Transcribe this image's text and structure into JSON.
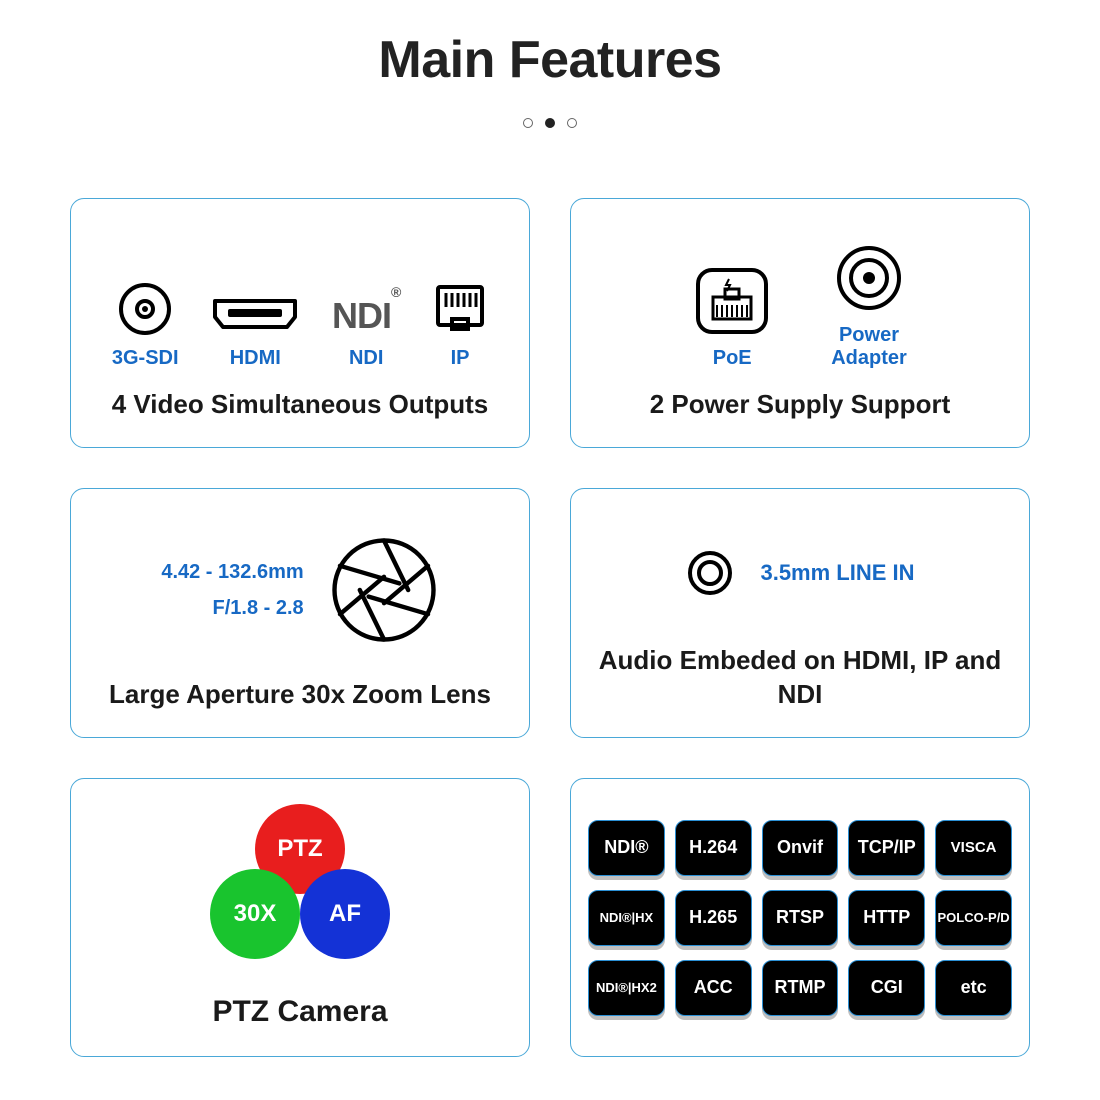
{
  "title": "Main Features",
  "colors": {
    "border": "#4aa8d8",
    "accent": "#1769c4",
    "text": "#1a1a1a",
    "proto_bg": "#000000",
    "proto_border": "#2a8fd4"
  },
  "pager": {
    "count": 3,
    "active": 1
  },
  "cards": {
    "video": {
      "caption": "4 Video Simultaneous Outputs",
      "items": [
        {
          "label": "3G-SDI",
          "icon": "sdi"
        },
        {
          "label": "HDMI",
          "icon": "hdmi"
        },
        {
          "label": "NDI",
          "icon": "ndi-logo",
          "logo": "NDI",
          "sup": "®"
        },
        {
          "label": "IP",
          "icon": "rj45"
        }
      ]
    },
    "power": {
      "caption": "2 Power Supply Support",
      "items": [
        {
          "label": "PoE",
          "icon": "poe"
        },
        {
          "label": "Power\nAdapter",
          "icon": "dcjack"
        }
      ]
    },
    "lens": {
      "caption": "Large Aperture 30x Zoom Lens",
      "spec1": "4.42 - 132.6mm",
      "spec2": "F/1.8 - 2.8",
      "icon": "aperture"
    },
    "audio": {
      "caption": "Audio Embeded on HDMI, IP and NDI",
      "label": "3.5mm LINE IN",
      "icon": "ring"
    },
    "ptz": {
      "caption": "PTZ Camera",
      "circles": [
        {
          "label": "PTZ",
          "color": "#e81e1e"
        },
        {
          "label": "30X",
          "color": "#19c42e"
        },
        {
          "label": "AF",
          "color": "#1432d6"
        }
      ]
    },
    "protocols": {
      "items": [
        "NDI®",
        "H.264",
        "Onvif",
        "TCP/IP",
        "VISCA",
        "NDI®|HX",
        "H.265",
        "RTSP",
        "HTTP",
        "POLCO-P/D",
        "NDI®|HX2",
        "ACC",
        "RTMP",
        "CGI",
        "etc"
      ],
      "small_idx": [
        5,
        9,
        10
      ],
      "med_idx": [
        4
      ]
    }
  }
}
